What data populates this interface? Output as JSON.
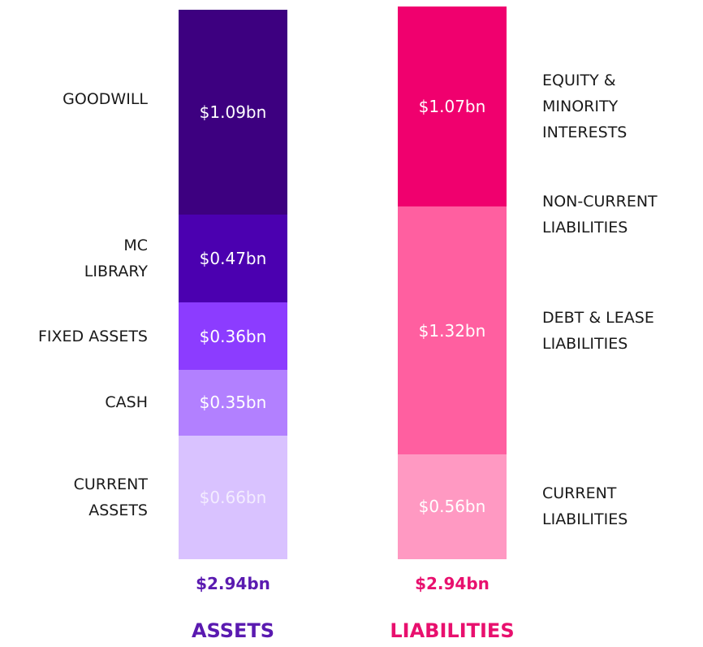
{
  "chart_data": {
    "type": "stacked-column",
    "series": [
      {
        "name": "ASSETS",
        "labels": [
          "GOODWILL",
          "MC\nLIBRARY",
          "FIXED ASSETS",
          "CASH",
          "CURRENT\nASSETS"
        ],
        "values": [
          1.09,
          0.47,
          0.36,
          0.35,
          0.66
        ],
        "value_labels": [
          "$1.09bn",
          "$0.47bn",
          "$0.36bn",
          "$0.35bn",
          "$0.66bn"
        ],
        "color": [
          "#3d0080",
          "#4b00b0",
          "#8c3cff",
          "#b280ff",
          "#d9c2ff"
        ],
        "total": 2.94,
        "total_label": "$2.94bn",
        "title_color": "#5a1ab0"
      },
      {
        "name": "LIABILITIES",
        "labels": [
          "EQUITY &\nMINORITY\nINTERESTS",
          "DEBT & LEASE\nLIABILITIES",
          "CURRENT\nLIABILITIES"
        ],
        "values": [
          1.07,
          1.32,
          0.56
        ],
        "value_labels": [
          "$1.07bn",
          "$1.32bn",
          "$0.56bn"
        ],
        "color": [
          "#f0006e",
          "#ff5fa0",
          "#ff99c2"
        ],
        "annotation": "NON-CURRENT\nLIABILITIES",
        "total": 2.94,
        "total_label": "$2.94bn",
        "title_color": "#e8106e"
      }
    ]
  }
}
